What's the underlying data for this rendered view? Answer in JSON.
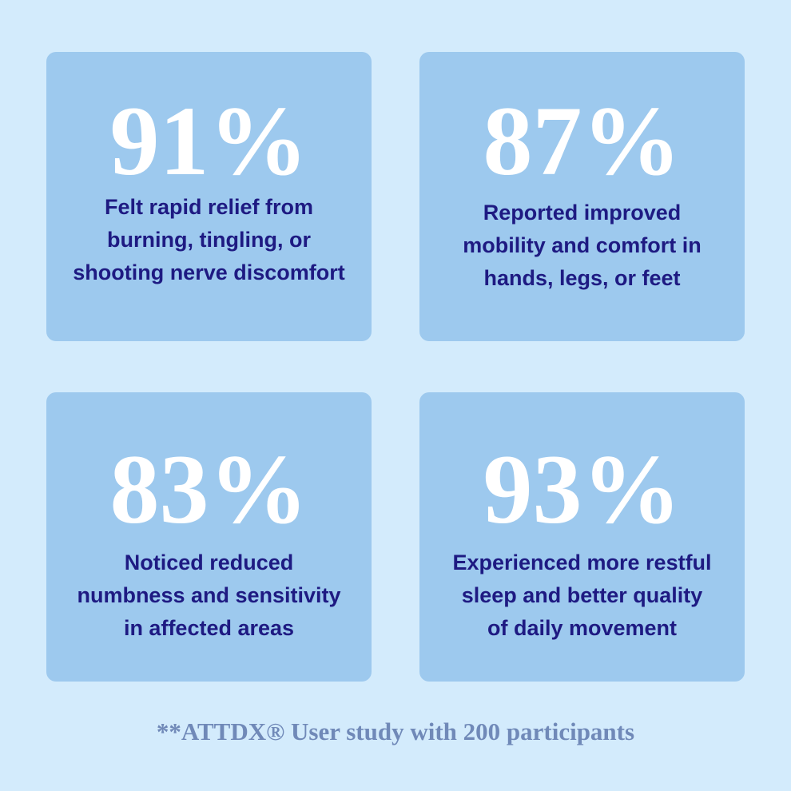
{
  "cards": [
    {
      "stat": "91%",
      "description": "Felt rapid relief from\nburning, tingling, or\nshooting nerve discomfort"
    },
    {
      "stat": "87%",
      "description": "Reported improved\nmobility and comfort in\nhands, legs, or feet"
    },
    {
      "stat": "83%",
      "description": "Noticed reduced\nnumbness and sensitivity\nin  affected areas"
    },
    {
      "stat": "93%",
      "description": "Experienced more restful\nsleep and better quality\nof daily movement"
    }
  ],
  "footer": {
    "text": "**ATTDX® User study with 200 participants"
  },
  "colors": {
    "background": "#d3ebfc",
    "card": "#9dc9ee",
    "stat": "#ffffff",
    "description": "#1e1a82",
    "footer": "#7089b8"
  }
}
